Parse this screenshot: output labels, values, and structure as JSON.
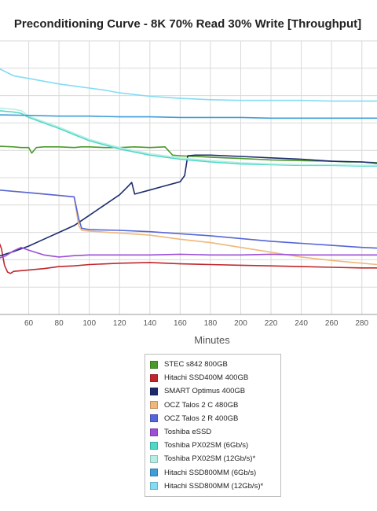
{
  "chart_data": {
    "type": "line",
    "title": "Preconditioning Curve - 8K 70% Read 30% Write [Throughput]",
    "xlabel": "Minutes",
    "ylabel": "",
    "xlim": [
      40,
      290
    ],
    "ylim": [
      0,
      40
    ],
    "xticks": [
      60,
      80,
      100,
      120,
      140,
      160,
      180,
      200,
      220,
      240,
      260,
      280
    ],
    "grid": true,
    "legend_position": "bottom",
    "series": [
      {
        "name": "STEC s842 800GB",
        "color": "#4a9a2a",
        "x": [
          40,
          50,
          55,
          60,
          62,
          65,
          70,
          80,
          90,
          95,
          100,
          110,
          120,
          130,
          140,
          150,
          155,
          160,
          170,
          180,
          190,
          200,
          210,
          220,
          240,
          260,
          270,
          280,
          290
        ],
        "y": [
          24.6,
          24.5,
          24.4,
          24.4,
          23.6,
          24.4,
          24.5,
          24.5,
          24.4,
          24.5,
          24.5,
          24.4,
          24.4,
          24.5,
          24.4,
          24.5,
          23.3,
          23.2,
          23.1,
          23.0,
          22.9,
          22.8,
          22.7,
          22.6,
          22.5,
          22.4,
          22.3,
          22.3,
          22.2
        ]
      },
      {
        "name": "Hitachi SSD400M 400GB",
        "color": "#c0272d",
        "x": [
          40,
          42,
          44,
          46,
          48,
          50,
          60,
          70,
          80,
          90,
          100,
          120,
          140,
          160,
          180,
          200,
          220,
          240,
          260,
          280,
          290
        ],
        "y": [
          10.8,
          9.6,
          7.2,
          6.2,
          6.0,
          6.3,
          6.5,
          6.7,
          7.0,
          7.1,
          7.3,
          7.5,
          7.6,
          7.4,
          7.3,
          7.2,
          7.1,
          7.0,
          6.9,
          6.8,
          6.8
        ]
      },
      {
        "name": "SMART Optimus 400GB",
        "color": "#1d2b6e",
        "x": [
          40,
          50,
          60,
          70,
          80,
          90,
          100,
          110,
          120,
          125,
          128,
          130,
          140,
          150,
          160,
          163,
          165,
          170,
          180,
          200,
          220,
          240,
          260,
          280,
          290
        ],
        "y": [
          8.5,
          9.2,
          10.0,
          11.0,
          12.0,
          13.0,
          14.5,
          16.0,
          17.5,
          18.6,
          19.3,
          17.6,
          18.2,
          18.8,
          19.4,
          20.3,
          23.2,
          23.3,
          23.3,
          23.1,
          22.9,
          22.7,
          22.4,
          22.3,
          22.1
        ]
      },
      {
        "name": "OCZ Talos 2 C 480GB",
        "color": "#f0b77a",
        "x": [
          40,
          60,
          80,
          90,
          93,
          95,
          100,
          120,
          140,
          160,
          180,
          200,
          220,
          240,
          260,
          280,
          290
        ],
        "y": [
          18.2,
          17.8,
          17.4,
          17.2,
          13.0,
          12.3,
          12.2,
          11.9,
          11.6,
          11.0,
          10.5,
          9.8,
          9.1,
          8.4,
          7.9,
          7.5,
          7.3
        ]
      },
      {
        "name": "OCZ Talos 2 R 400GB",
        "color": "#5566d8",
        "x": [
          40,
          60,
          80,
          90,
          93,
          95,
          100,
          120,
          140,
          160,
          180,
          200,
          220,
          240,
          260,
          280,
          290
        ],
        "y": [
          18.2,
          17.8,
          17.4,
          17.2,
          14.0,
          12.6,
          12.4,
          12.3,
          12.1,
          11.8,
          11.5,
          11.1,
          10.7,
          10.4,
          10.1,
          9.8,
          9.7
        ]
      },
      {
        "name": "Toshiba eSSD",
        "color": "#9b4fd6",
        "x": [
          40,
          45,
          50,
          55,
          60,
          70,
          80,
          90,
          100,
          120,
          140,
          160,
          180,
          200,
          220,
          240,
          260,
          280,
          290
        ],
        "y": [
          8.2,
          8.6,
          9.3,
          9.8,
          9.4,
          8.7,
          8.4,
          8.6,
          8.7,
          8.7,
          8.7,
          8.8,
          8.7,
          8.7,
          8.8,
          8.7,
          8.7,
          8.7,
          8.7
        ]
      },
      {
        "name": "Toshiba PX02SM (6Gb/s)",
        "color": "#4ed8c8",
        "x": [
          40,
          50,
          55,
          60,
          70,
          80,
          90,
          100,
          120,
          140,
          160,
          180,
          200,
          220,
          240,
          260,
          280,
          290
        ],
        "y": [
          29.8,
          29.6,
          29.4,
          28.8,
          28.0,
          27.2,
          26.3,
          25.4,
          24.2,
          23.3,
          22.7,
          22.3,
          22.0,
          21.9,
          21.8,
          21.8,
          21.7,
          21.7
        ]
      },
      {
        "name": "Toshiba PX02SM (12Gb/s)*",
        "color": "#b6eee3",
        "x": [
          40,
          50,
          55,
          60,
          70,
          80,
          90,
          100,
          120,
          140,
          160,
          180,
          200,
          220,
          240,
          260,
          280,
          290
        ],
        "y": [
          30.2,
          30.0,
          29.8,
          29.0,
          28.2,
          27.4,
          26.5,
          25.6,
          24.4,
          23.5,
          22.9,
          22.5,
          22.2,
          22.0,
          21.9,
          21.9,
          21.8,
          21.8
        ]
      },
      {
        "name": "Hitachi SSD800MM (6Gb/s)",
        "color": "#3d9ed8",
        "x": [
          40,
          60,
          80,
          100,
          120,
          140,
          160,
          180,
          200,
          220,
          240,
          260,
          280,
          290
        ],
        "y": [
          29.2,
          29.1,
          29.0,
          29.0,
          28.9,
          28.9,
          28.8,
          28.8,
          28.8,
          28.7,
          28.7,
          28.7,
          28.7,
          28.7
        ]
      },
      {
        "name": "Hitachi SSD800MM (12Gb/s)*",
        "color": "#84dcf4",
        "x": [
          40,
          50,
          60,
          70,
          80,
          90,
          100,
          110,
          120,
          140,
          160,
          180,
          200,
          220,
          240,
          260,
          280,
          290
        ],
        "y": [
          36.0,
          34.9,
          34.5,
          34.1,
          33.7,
          33.4,
          33.1,
          32.8,
          32.4,
          31.9,
          31.6,
          31.4,
          31.3,
          31.3,
          31.3,
          31.2,
          31.2,
          31.2
        ]
      }
    ]
  }
}
